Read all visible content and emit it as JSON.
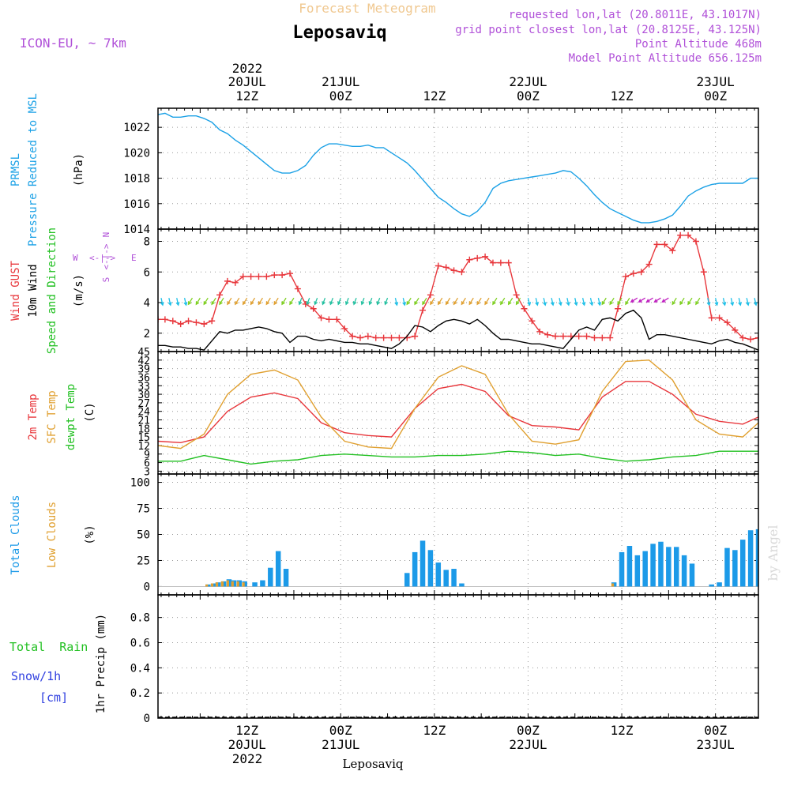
{
  "header": {
    "faded_title": "Forecast Meteogram",
    "location": "Leposaviq",
    "model": "ICON-EU, ~ 7km",
    "requested": "requested lon,lat (20.8011E, 43.1017N)",
    "grid_point": "grid point closest lon,lat (20.8125E, 43.125N)",
    "point_altitude": "Point Altitude 468m",
    "model_altitude": "Model Point Altitude 656.125m"
  },
  "footer_location": "Leposaviq",
  "watermark": "by Angel",
  "time_axis": {
    "year_label": "2022",
    "top_ticks": [
      {
        "date": "20JUL",
        "time": "12Z",
        "hour": 12
      },
      {
        "date": "21JUL",
        "time": "00Z",
        "hour": 24
      },
      {
        "date": "",
        "time": "12Z",
        "hour": 36
      },
      {
        "date": "22JUL",
        "time": "00Z",
        "hour": 48
      },
      {
        "date": "",
        "time": "12Z",
        "hour": 60
      },
      {
        "date": "23JUL",
        "time": "00Z",
        "hour": 72
      }
    ],
    "bottom_ticks": [
      {
        "time": "12Z",
        "date": "20JUL",
        "hour": 12
      },
      {
        "time": "00Z",
        "date": "21JUL",
        "hour": 24
      },
      {
        "time": "12Z",
        "date": "",
        "hour": 36
      },
      {
        "time": "00Z",
        "date": "22JUL",
        "hour": 48
      },
      {
        "time": "12Z",
        "date": "",
        "hour": 60
      },
      {
        "time": "00Z",
        "date": "23JUL",
        "hour": 72
      }
    ],
    "range_hours": [
      0.6,
      77.5
    ]
  },
  "panel_labels": {
    "pressure": {
      "line1": "PRMSL",
      "line2": "Pressure Reduced to MSL",
      "unit": "(hPa)"
    },
    "wind": {
      "gust": "Wind GUST",
      "wind10": "10m Wind",
      "dir": "Speed and Direction",
      "unit": "(m/s)",
      "compass_n": "N",
      "compass_s": "S",
      "compass_w": "W",
      "compass_e": "E"
    },
    "temp": {
      "t2m": "2m Temp",
      "sfc": "SFC Temp",
      "dew": "dewpt Temp",
      "unit": "(C)"
    },
    "clouds": {
      "total": "Total Clouds",
      "low": "Low Clouds",
      "unit": "(%)"
    },
    "precip": {
      "rain": "Total  Rain",
      "snow": "Snow/1h",
      "snow_unit": "[cm]",
      "axis": "1hr Precip (mm)"
    }
  },
  "colors": {
    "pressure": "#1ba1e6",
    "gust": "#e8373c",
    "wind10": "#000000",
    "t2m": "#e8373c",
    "sfc": "#e0a030",
    "dew": "#22c022",
    "total_clouds": "#1c9ae8",
    "low_clouds": "#e0a030",
    "rain_label": "#22c022",
    "snow_label": "#3040e0",
    "header_purple": "#b050d8",
    "faded_title": "#f0c890"
  },
  "chart_data": [
    {
      "type": "line",
      "name": "pressure",
      "ylim": [
        1014,
        1023.5
      ],
      "yticks": [
        1014,
        1016,
        1018,
        1020,
        1022
      ],
      "series": [
        {
          "name": "PRMSL",
          "x": [
            0.6,
            1.5,
            2.5,
            3.5,
            4.5,
            5.5,
            6.5,
            7.5,
            8.5,
            9.5,
            10.5,
            11.5,
            12.5,
            13.5,
            14.5,
            15.5,
            16.5,
            17.5,
            18.5,
            19.5,
            20.5,
            21.5,
            22.5,
            23.5,
            24.5,
            25.5,
            26.5,
            27.5,
            28.5,
            29.5,
            30.5,
            31.5,
            32.5,
            33.5,
            34.5,
            35.5,
            36.5,
            37.5,
            38.5,
            39.5,
            40.5,
            41.5,
            42.5,
            43.5,
            44.5,
            45.5,
            46.5,
            47.5,
            48.5,
            49.5,
            50.5,
            51.5,
            52.5,
            53.5,
            54.5,
            55.5,
            56.5,
            57.5,
            58.5,
            59.5,
            60.5,
            61.5,
            62.5,
            63.5,
            64.5,
            65.5,
            66.5,
            67.5,
            68.5,
            69.5,
            70.5,
            71.5,
            72.5,
            73.5,
            74.5,
            75.5,
            76.5,
            77.5
          ],
          "y": [
            1023.0,
            1023.1,
            1022.8,
            1022.8,
            1022.9,
            1022.9,
            1022.7,
            1022.4,
            1021.8,
            1021.5,
            1021.0,
            1020.6,
            1020.1,
            1019.6,
            1019.1,
            1018.6,
            1018.4,
            1018.4,
            1018.6,
            1019.0,
            1019.8,
            1020.4,
            1020.7,
            1020.7,
            1020.6,
            1020.5,
            1020.5,
            1020.6,
            1020.4,
            1020.4,
            1020.0,
            1019.6,
            1019.2,
            1018.6,
            1017.9,
            1017.2,
            1016.5,
            1016.1,
            1015.6,
            1015.2,
            1015.0,
            1015.4,
            1016.1,
            1017.2,
            1017.6,
            1017.8,
            1017.9,
            1018.0,
            1018.1,
            1018.2,
            1018.3,
            1018.4,
            1018.6,
            1018.5,
            1018.0,
            1017.4,
            1016.7,
            1016.1,
            1015.6,
            1015.3,
            1015.0,
            1014.7,
            1014.5,
            1014.5,
            1014.6,
            1014.8,
            1015.1,
            1015.8,
            1016.6,
            1017.0,
            1017.3,
            1017.5,
            1017.6,
            1017.6,
            1017.6,
            1017.6,
            1018.0,
            1018.0
          ]
        }
      ]
    },
    {
      "type": "line",
      "name": "wind",
      "ylim": [
        0.8,
        8.8
      ],
      "yticks": [
        2,
        4,
        6,
        8
      ],
      "series": [
        {
          "name": "Wind GUST",
          "marker": "+",
          "x": [
            0.6,
            1.5,
            2.5,
            3.5,
            4.5,
            5.5,
            6.5,
            7.5,
            8.5,
            9.5,
            10.5,
            11.5,
            12.5,
            13.5,
            14.5,
            15.5,
            16.5,
            17.5,
            18.5,
            19.5,
            20.5,
            21.5,
            22.5,
            23.5,
            24.5,
            25.5,
            26.5,
            27.5,
            28.5,
            29.5,
            30.5,
            31.5,
            32.5,
            33.5,
            34.5,
            35.5,
            36.5,
            37.5,
            38.5,
            39.5,
            40.5,
            41.5,
            42.5,
            43.5,
            44.5,
            45.5,
            46.5,
            47.5,
            48.5,
            49.5,
            50.5,
            51.5,
            52.5,
            53.5,
            54.5,
            55.5,
            56.5,
            57.5,
            58.5,
            59.5,
            60.5,
            61.5,
            62.5,
            63.5,
            64.5,
            65.5,
            66.5,
            67.5,
            68.5,
            69.5,
            70.5,
            71.5,
            72.5,
            73.5,
            74.5,
            75.5,
            76.5,
            77.5
          ],
          "y": [
            2.9,
            2.9,
            2.8,
            2.6,
            2.8,
            2.7,
            2.6,
            2.8,
            4.5,
            5.4,
            5.3,
            5.7,
            5.7,
            5.7,
            5.7,
            5.8,
            5.8,
            5.9,
            4.9,
            3.9,
            3.6,
            3.0,
            2.9,
            2.9,
            2.3,
            1.8,
            1.7,
            1.8,
            1.7,
            1.7,
            1.7,
            1.7,
            1.7,
            1.8,
            3.5,
            4.5,
            6.4,
            6.3,
            6.1,
            6.0,
            6.8,
            6.9,
            7.0,
            6.6,
            6.6,
            6.6,
            4.5,
            3.6,
            2.8,
            2.1,
            1.9,
            1.8,
            1.8,
            1.8,
            1.8,
            1.8,
            1.7,
            1.7,
            1.7,
            3.6,
            5.7,
            5.9,
            6.0,
            6.5,
            7.8,
            7.8,
            7.4,
            8.4,
            8.4,
            8.0,
            6.0,
            3.0,
            3.0,
            2.7,
            2.2,
            1.7,
            1.6,
            1.7
          ]
        },
        {
          "name": "10m Wind",
          "x": [
            0.6,
            1.5,
            2.5,
            3.5,
            4.5,
            5.5,
            6.5,
            7.5,
            8.5,
            9.5,
            10.5,
            11.5,
            12.5,
            13.5,
            14.5,
            15.5,
            16.5,
            17.5,
            18.5,
            19.5,
            20.5,
            21.5,
            22.5,
            23.5,
            24.5,
            25.5,
            26.5,
            27.5,
            28.5,
            29.5,
            30.5,
            31.5,
            32.5,
            33.5,
            34.5,
            35.5,
            36.5,
            37.5,
            38.5,
            39.5,
            40.5,
            41.5,
            42.5,
            43.5,
            44.5,
            45.5,
            46.5,
            47.5,
            48.5,
            49.5,
            50.5,
            51.5,
            52.5,
            53.5,
            54.5,
            55.5,
            56.5,
            57.5,
            58.5,
            59.5,
            60.5,
            61.5,
            62.5,
            63.5,
            64.5,
            65.5,
            66.5,
            67.5,
            68.5,
            69.5,
            70.5,
            71.5,
            72.5,
            73.5,
            74.5,
            75.5,
            76.5,
            77.5
          ],
          "y": [
            1.2,
            1.2,
            1.1,
            1.1,
            1.0,
            1.0,
            0.9,
            1.5,
            2.1,
            2.0,
            2.2,
            2.2,
            2.3,
            2.4,
            2.3,
            2.1,
            2.0,
            1.4,
            1.8,
            1.8,
            1.6,
            1.5,
            1.6,
            1.5,
            1.4,
            1.4,
            1.3,
            1.3,
            1.2,
            1.1,
            1.0,
            1.3,
            1.8,
            2.5,
            2.4,
            2.1,
            2.5,
            2.8,
            2.9,
            2.8,
            2.6,
            2.9,
            2.5,
            2.0,
            1.6,
            1.6,
            1.5,
            1.4,
            1.3,
            1.3,
            1.2,
            1.1,
            1.0,
            1.6,
            2.2,
            2.4,
            2.2,
            2.9,
            3.0,
            2.8,
            3.3,
            3.5,
            3.0,
            1.6,
            1.9,
            1.9,
            1.8,
            1.7,
            1.6,
            1.5,
            1.4,
            1.3,
            1.5,
            1.6,
            1.4,
            1.3,
            1.1,
            0.9
          ]
        }
      ]
    },
    {
      "type": "line",
      "name": "temperature",
      "ylim": [
        2,
        45
      ],
      "yticks": [
        3,
        6,
        9,
        12,
        15,
        18,
        21,
        24,
        27,
        30,
        33,
        36,
        39,
        42,
        45
      ],
      "series": [
        {
          "name": "2m Temp",
          "x": [
            0.6,
            3.5,
            6.5,
            9.5,
            12.5,
            15.5,
            18.5,
            21.5,
            24.5,
            27.5,
            30.5,
            33.5,
            36.5,
            39.5,
            42.5,
            45.5,
            48.5,
            51.5,
            54.5,
            57.5,
            60.5,
            63.5,
            66.5,
            69.5,
            72.5,
            75.5,
            77.5
          ],
          "y": [
            13.5,
            13.0,
            15.0,
            24.0,
            29.0,
            30.5,
            28.5,
            20.0,
            16.5,
            15.5,
            15.0,
            25.0,
            32.0,
            33.5,
            31.0,
            22.5,
            19.0,
            18.5,
            17.5,
            29.0,
            34.5,
            34.5,
            30.0,
            23.0,
            20.5,
            19.5,
            22.0
          ]
        },
        {
          "name": "SFC Temp",
          "x": [
            0.6,
            3.5,
            6.5,
            9.5,
            12.5,
            15.5,
            18.5,
            21.5,
            24.5,
            27.5,
            30.5,
            33.5,
            36.5,
            39.5,
            42.5,
            45.5,
            48.5,
            51.5,
            54.5,
            57.5,
            60.5,
            63.5,
            66.5,
            69.5,
            72.5,
            75.5,
            77.5
          ],
          "y": [
            12.0,
            11.0,
            16.0,
            30.0,
            37.0,
            38.5,
            35.0,
            22.0,
            13.5,
            11.5,
            11.0,
            25.0,
            36.0,
            40.0,
            37.0,
            23.0,
            13.5,
            12.5,
            14.0,
            31.0,
            41.5,
            42.0,
            35.0,
            21.0,
            16.0,
            15.0,
            20.0
          ]
        },
        {
          "name": "dewpt Temp",
          "x": [
            0.6,
            3.5,
            6.5,
            9.5,
            12.5,
            15.5,
            18.5,
            21.5,
            24.5,
            27.5,
            30.5,
            33.5,
            36.5,
            39.5,
            42.5,
            45.5,
            48.5,
            51.5,
            54.5,
            57.5,
            60.5,
            63.5,
            66.5,
            69.5,
            72.5,
            75.5,
            77.5
          ],
          "y": [
            6.5,
            6.5,
            8.5,
            7.0,
            5.5,
            6.5,
            7.0,
            8.5,
            9.0,
            8.5,
            8.0,
            8.0,
            8.5,
            8.5,
            9.0,
            10.0,
            9.5,
            8.5,
            9.0,
            7.5,
            6.5,
            7.0,
            8.0,
            8.5,
            10.0,
            10.0,
            10.0
          ]
        }
      ]
    },
    {
      "type": "bar",
      "name": "clouds",
      "ylim": [
        -8,
        108
      ],
      "yticks": [
        0,
        25,
        50,
        75,
        100
      ],
      "series": [
        {
          "name": "Total Clouds",
          "x": [
            7.0,
            7.7,
            8.3,
            9.0,
            9.7,
            10.3,
            11.0,
            11.7,
            13.0,
            14.0,
            15.0,
            16.0,
            17.0,
            32.5,
            33.5,
            34.5,
            35.5,
            36.5,
            37.5,
            38.5,
            39.5,
            59.0,
            60.0,
            61.0,
            62.0,
            63.0,
            64.0,
            65.0,
            66.0,
            67.0,
            68.0,
            69.0,
            70.0,
            71.5,
            72.5,
            73.5,
            74.5,
            75.5,
            76.5,
            77.5
          ],
          "y": [
            2,
            3,
            4,
            5,
            7,
            6,
            6,
            5,
            4,
            6,
            18,
            34,
            17,
            13,
            33,
            44,
            35,
            23,
            16,
            17,
            3,
            4,
            33,
            39,
            30,
            34,
            41,
            43,
            38,
            38,
            30,
            22,
            0,
            2,
            4,
            37,
            35,
            45,
            54,
            55
          ]
        },
        {
          "name": "Low Clouds",
          "x": [
            7.0,
            7.7,
            8.3,
            9.0,
            9.7,
            10.3,
            11.0,
            11.7,
            59.0
          ],
          "y": [
            2,
            3,
            4,
            5,
            6,
            5,
            5,
            4,
            3
          ]
        }
      ]
    },
    {
      "type": "bar",
      "name": "precipitation",
      "ylim": [
        0,
        0.98
      ],
      "yticks": [
        0,
        0.2,
        0.4,
        0.6,
        0.8
      ],
      "series": [
        {
          "name": "Total Rain",
          "x": [],
          "y": []
        },
        {
          "name": "Snow/1h",
          "x": [],
          "y": []
        }
      ]
    }
  ]
}
